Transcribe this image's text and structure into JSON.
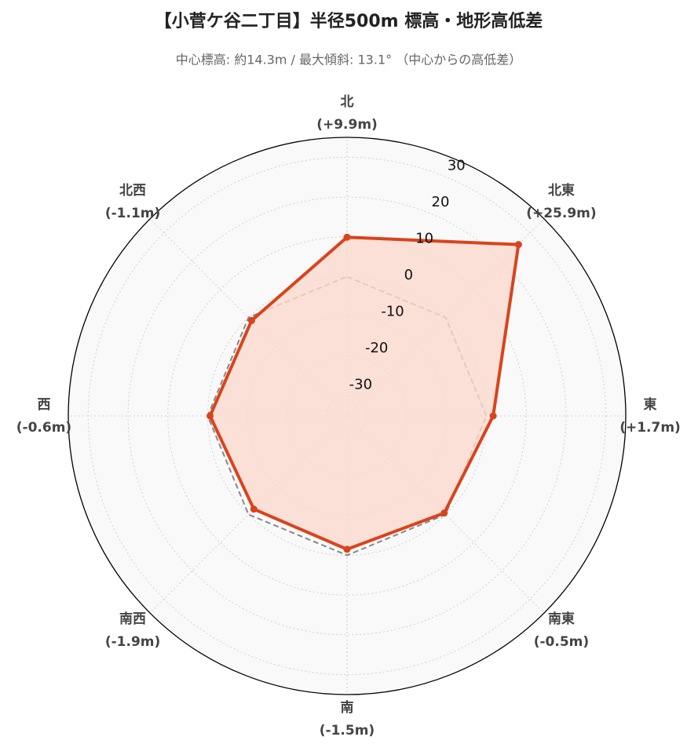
{
  "chart_data": {
    "type": "radar",
    "title": "【小菅ケ谷二丁目】半径500m 標高・地形高低差",
    "subtitle": "中心標高: 約14.3m / 最大傾斜: 13.1°  （中心からの高低差）",
    "categories": [
      "北",
      "北東",
      "東",
      "南東",
      "南",
      "南西",
      "西",
      "北西"
    ],
    "values": [
      9.9,
      25.9,
      1.7,
      -0.5,
      -1.5,
      -1.9,
      -0.6,
      -1.1
    ],
    "value_labels": [
      "(+9.9m)",
      "(+25.9m)",
      "(+1.7m)",
      "(-0.5m)",
      "(-1.5m)",
      "(-1.9m)",
      "(-0.6m)",
      "(-1.1m)"
    ],
    "color": "#d9441c",
    "fill_color": "#fbd9d0",
    "reference_value": 0,
    "reference_color": "#888888",
    "ylim": [
      -35,
      35
    ],
    "yticks": [
      -30,
      -20,
      -10,
      0,
      10,
      20,
      30
    ],
    "grid": true
  }
}
